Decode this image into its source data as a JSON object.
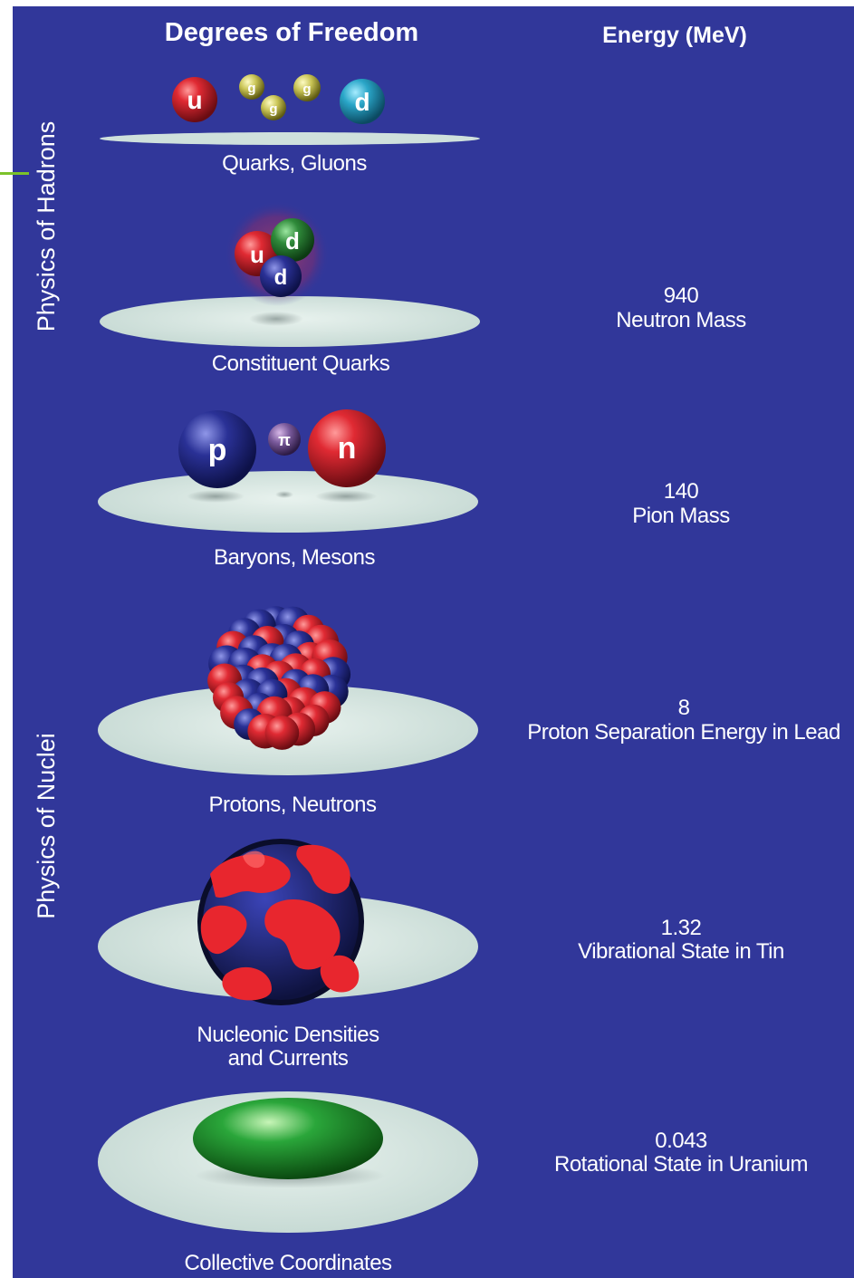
{
  "headers": {
    "degrees": "Degrees of Freedom",
    "energy": "Energy (MeV)"
  },
  "side_labels": {
    "hadrons": "Physics of Hadrons",
    "nuclei": "Physics of Nuclei"
  },
  "levels": [
    {
      "label": "Quarks, Gluons",
      "energy_value": "",
      "energy_desc": ""
    },
    {
      "label": "Constituent Quarks",
      "energy_value": "940",
      "energy_desc": "Neutron Mass"
    },
    {
      "label": "Baryons, Mesons",
      "energy_value": "140",
      "energy_desc": "Pion Mass"
    },
    {
      "label": "Protons, Neutrons",
      "energy_value": "8",
      "energy_desc": "Proton Separation Energy in Lead"
    },
    {
      "label_line1": "Nucleonic Densities",
      "label_line2": "and Currents",
      "energy_value": "1.32",
      "energy_desc": "Vibrational State in Tin"
    },
    {
      "label": "Collective Coordinates",
      "energy_value": "0.043",
      "energy_desc": "Rotational State in Uranium"
    }
  ],
  "particle_glyphs": {
    "up": "u",
    "down": "d",
    "gluon": "g",
    "proton": "p",
    "neutron": "n",
    "pion": "π"
  },
  "colors": {
    "background": "#31379a",
    "disc": "#cfe0dc",
    "proton_red": "#d4202a",
    "neutron_blue": "#232b8c",
    "gluon_yellow": "#c9c455",
    "quark_green": "#2f8a3a",
    "quark_cyan": "#2aa6c8",
    "nucleus_green": "#1f9a2a",
    "accent_green": "#7cc22a"
  }
}
